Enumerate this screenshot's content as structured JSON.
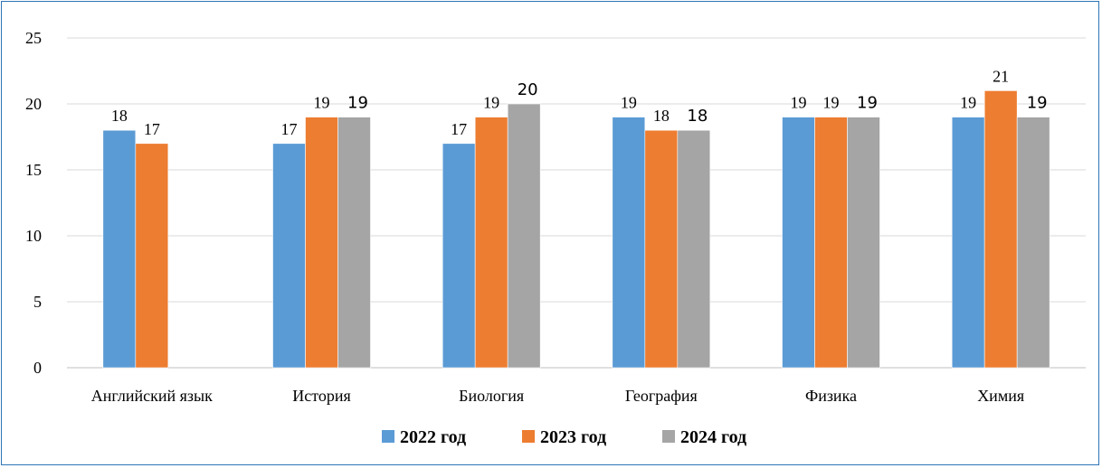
{
  "chart_data": {
    "type": "bar",
    "categories": [
      "Английский язык",
      "История",
      "Биология",
      "География",
      "Физика",
      "Химия"
    ],
    "series": [
      {
        "name": "2022 год",
        "values": [
          18,
          17,
          17,
          19,
          19,
          19
        ],
        "color": "#5b9bd5"
      },
      {
        "name": "2023 год",
        "values": [
          17,
          19,
          19,
          18,
          19,
          21
        ],
        "color": "#ed7d31"
      },
      {
        "name": "2024 год",
        "values": [
          null,
          19,
          20,
          18,
          19,
          19
        ],
        "color": "#a5a5a5"
      }
    ],
    "ylim": [
      0,
      25
    ],
    "yticks": [
      0,
      5,
      10,
      15,
      20,
      25
    ],
    "grid": true,
    "legend": "bottom",
    "title": "",
    "xlabel": "",
    "ylabel": ""
  },
  "colors": {
    "frame_border": "#2e75b6",
    "gridline": "#d9d9d9",
    "axis": "#bfbfbf"
  }
}
